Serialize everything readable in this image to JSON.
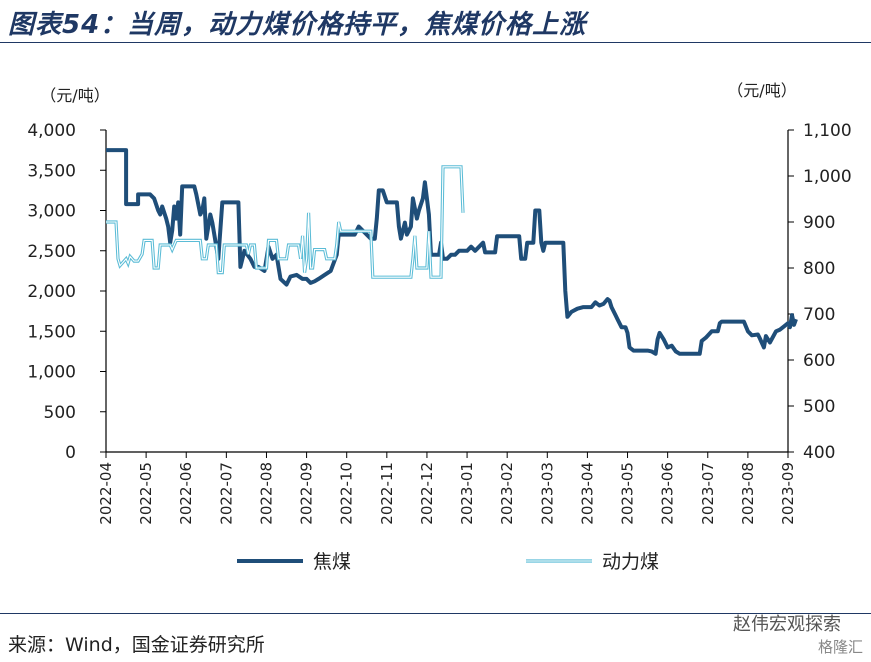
{
  "header": {
    "title": "图表54：当周，动力煤价格持平，焦煤价格上涨"
  },
  "footer": {
    "source": "来源：Wind，国金证券研究所"
  },
  "watermark": {
    "text": "赵伟宏观探索",
    "sub": "格隆汇"
  },
  "chart_data": {
    "type": "line",
    "left_unit": "（元/吨）",
    "right_unit": "（元/吨）",
    "left_axis": {
      "min": 0,
      "max": 4000,
      "step": 500,
      "ticks": [
        "0",
        "500",
        "1,000",
        "1,500",
        "2,000",
        "2,500",
        "3,000",
        "3,500",
        "4,000"
      ]
    },
    "right_axis": {
      "min": 400,
      "max": 1100,
      "step": 100,
      "ticks": [
        "400",
        "500",
        "600",
        "700",
        "800",
        "900",
        "1,000",
        "1,100"
      ]
    },
    "x_range": [
      0,
      17
    ],
    "x_ticks": [
      "2022-04",
      "2022-05",
      "2022-06",
      "2022-07",
      "2022-08",
      "2022-09",
      "2022-10",
      "2022-11",
      "2022-12",
      "2023-01",
      "2023-02",
      "2023-03",
      "2023-04",
      "2023-05",
      "2023-06",
      "2023-07",
      "2023-08",
      "2023-09"
    ],
    "legend_position": "bottom",
    "series": [
      {
        "name": "焦煤",
        "axis": "left",
        "color": "#1f4e79",
        "style": "solid",
        "points": [
          [
            0.0,
            3750
          ],
          [
            0.5,
            3750
          ],
          [
            0.5,
            3080
          ],
          [
            0.8,
            3080
          ],
          [
            0.8,
            3200
          ],
          [
            1.1,
            3200
          ],
          [
            1.2,
            3150
          ],
          [
            1.3,
            3000
          ],
          [
            1.35,
            2950
          ],
          [
            1.4,
            3050
          ],
          [
            1.5,
            2900
          ],
          [
            1.55,
            2800
          ],
          [
            1.6,
            2600
          ],
          [
            1.65,
            2750
          ],
          [
            1.7,
            3050
          ],
          [
            1.75,
            2900
          ],
          [
            1.8,
            3100
          ],
          [
            1.85,
            2700
          ],
          [
            1.9,
            3300
          ],
          [
            2.2,
            3300
          ],
          [
            2.25,
            3200
          ],
          [
            2.35,
            2950
          ],
          [
            2.4,
            3000
          ],
          [
            2.45,
            3150
          ],
          [
            2.5,
            2650
          ],
          [
            2.6,
            2950
          ],
          [
            2.65,
            2850
          ],
          [
            2.7,
            2700
          ],
          [
            2.8,
            2400
          ],
          [
            2.9,
            3100
          ],
          [
            3.3,
            3100
          ],
          [
            3.35,
            2300
          ],
          [
            3.45,
            2500
          ],
          [
            3.6,
            2400
          ],
          [
            3.7,
            2300
          ],
          [
            3.8,
            2300
          ],
          [
            3.95,
            2250
          ],
          [
            4.05,
            2550
          ],
          [
            4.15,
            2400
          ],
          [
            4.25,
            2450
          ],
          [
            4.35,
            2150
          ],
          [
            4.5,
            2080
          ],
          [
            4.6,
            2180
          ],
          [
            4.75,
            2200
          ],
          [
            4.9,
            2150
          ],
          [
            5.0,
            2150
          ],
          [
            5.1,
            2100
          ],
          [
            5.2,
            2120
          ],
          [
            5.3,
            2150
          ],
          [
            5.45,
            2200
          ],
          [
            5.6,
            2250
          ],
          [
            5.75,
            2450
          ],
          [
            5.8,
            2700
          ],
          [
            6.2,
            2700
          ],
          [
            6.3,
            2800
          ],
          [
            6.6,
            2650
          ],
          [
            6.7,
            2650
          ],
          [
            6.75,
            2900
          ],
          [
            6.8,
            3250
          ],
          [
            6.9,
            3250
          ],
          [
            7.0,
            3100
          ],
          [
            7.1,
            3100
          ],
          [
            7.25,
            3100
          ],
          [
            7.3,
            2800
          ],
          [
            7.35,
            2650
          ],
          [
            7.45,
            2850
          ],
          [
            7.5,
            2700
          ],
          [
            7.6,
            2800
          ],
          [
            7.65,
            3150
          ],
          [
            7.75,
            2900
          ],
          [
            7.8,
            3000
          ],
          [
            7.9,
            3150
          ],
          [
            7.95,
            3350
          ],
          [
            8.05,
            2950
          ],
          [
            8.1,
            2450
          ],
          [
            8.3,
            2450
          ],
          [
            8.35,
            2600
          ],
          [
            8.4,
            2400
          ],
          [
            8.5,
            2400
          ],
          [
            8.6,
            2450
          ],
          [
            8.7,
            2450
          ],
          [
            8.8,
            2500
          ],
          [
            9.0,
            2500
          ],
          [
            9.1,
            2550
          ],
          [
            9.2,
            2500
          ],
          [
            9.4,
            2600
          ],
          [
            9.45,
            2480
          ],
          [
            9.7,
            2480
          ],
          [
            9.75,
            2680
          ],
          [
            10.3,
            2680
          ],
          [
            10.35,
            2400
          ],
          [
            10.45,
            2400
          ],
          [
            10.5,
            2600
          ],
          [
            10.65,
            2600
          ],
          [
            10.7,
            3000
          ],
          [
            10.8,
            3000
          ],
          [
            10.85,
            2600
          ],
          [
            10.9,
            2500
          ],
          [
            10.95,
            2600
          ],
          [
            11.4,
            2600
          ],
          [
            11.45,
            2000
          ],
          [
            11.5,
            1680
          ],
          [
            11.6,
            1740
          ],
          [
            11.75,
            1780
          ],
          [
            11.9,
            1800
          ],
          [
            12.0,
            1800
          ],
          [
            12.1,
            1800
          ],
          [
            12.2,
            1860
          ],
          [
            12.3,
            1820
          ],
          [
            12.4,
            1840
          ],
          [
            12.5,
            1900
          ],
          [
            12.55,
            1880
          ],
          [
            12.6,
            1800
          ],
          [
            12.7,
            1700
          ],
          [
            12.75,
            1650
          ],
          [
            12.85,
            1550
          ],
          [
            12.95,
            1550
          ],
          [
            13.0,
            1480
          ],
          [
            13.05,
            1300
          ],
          [
            13.15,
            1260
          ],
          [
            13.5,
            1260
          ],
          [
            13.6,
            1250
          ],
          [
            13.7,
            1220
          ],
          [
            13.75,
            1400
          ],
          [
            13.8,
            1480
          ],
          [
            13.9,
            1400
          ],
          [
            14.0,
            1300
          ],
          [
            14.1,
            1320
          ],
          [
            14.2,
            1250
          ],
          [
            14.3,
            1220
          ],
          [
            14.8,
            1220
          ],
          [
            14.85,
            1380
          ],
          [
            14.95,
            1420
          ],
          [
            15.1,
            1500
          ],
          [
            15.25,
            1500
          ],
          [
            15.3,
            1600
          ],
          [
            15.35,
            1620
          ],
          [
            15.5,
            1620
          ],
          [
            15.9,
            1620
          ],
          [
            16.0,
            1500
          ],
          [
            16.1,
            1450
          ],
          [
            16.25,
            1460
          ],
          [
            16.3,
            1410
          ],
          [
            16.4,
            1300
          ],
          [
            16.45,
            1440
          ],
          [
            16.55,
            1360
          ],
          [
            16.7,
            1500
          ],
          [
            16.8,
            1520
          ],
          [
            16.9,
            1560
          ],
          [
            17.0,
            1600
          ],
          [
            17.05,
            1550
          ],
          [
            17.1,
            1700
          ],
          [
            17.15,
            1580
          ],
          [
            17.2,
            1650
          ]
        ]
      },
      {
        "name": "动力煤",
        "axis": "right",
        "color": "#5bbcd6",
        "style": "double",
        "points": [
          [
            0.0,
            900
          ],
          [
            0.25,
            900
          ],
          [
            0.3,
            820
          ],
          [
            0.35,
            805
          ],
          [
            0.45,
            815
          ],
          [
            0.5,
            820
          ],
          [
            0.55,
            810
          ],
          [
            0.6,
            825
          ],
          [
            0.7,
            815
          ],
          [
            0.8,
            815
          ],
          [
            0.9,
            830
          ],
          [
            0.95,
            860
          ],
          [
            1.15,
            860
          ],
          [
            1.2,
            800
          ],
          [
            1.3,
            800
          ],
          [
            1.35,
            850
          ],
          [
            1.6,
            850
          ],
          [
            1.65,
            840
          ],
          [
            1.7,
            850
          ],
          [
            1.75,
            860
          ],
          [
            2.35,
            860
          ],
          [
            2.4,
            820
          ],
          [
            2.5,
            820
          ],
          [
            2.55,
            850
          ],
          [
            2.75,
            850
          ],
          [
            2.8,
            790
          ],
          [
            2.9,
            790
          ],
          [
            2.95,
            850
          ],
          [
            3.5,
            850
          ],
          [
            3.55,
            830
          ],
          [
            3.6,
            850
          ],
          [
            3.7,
            850
          ],
          [
            3.75,
            800
          ],
          [
            4.0,
            800
          ],
          [
            4.05,
            860
          ],
          [
            4.25,
            860
          ],
          [
            4.3,
            820
          ],
          [
            4.5,
            820
          ],
          [
            4.55,
            850
          ],
          [
            4.8,
            850
          ],
          [
            4.85,
            820
          ],
          [
            4.9,
            870
          ],
          [
            4.95,
            790
          ],
          [
            5.0,
            820
          ],
          [
            5.05,
            920
          ],
          [
            5.1,
            800
          ],
          [
            5.15,
            800
          ],
          [
            5.2,
            840
          ],
          [
            5.45,
            840
          ],
          [
            5.5,
            820
          ],
          [
            5.7,
            820
          ],
          [
            5.75,
            850
          ],
          [
            5.8,
            900
          ],
          [
            5.85,
            880
          ],
          [
            6.6,
            880
          ],
          [
            6.65,
            780
          ],
          [
            7.6,
            780
          ],
          [
            7.65,
            820
          ],
          [
            7.7,
            870
          ],
          [
            7.75,
            800
          ],
          [
            8.0,
            800
          ],
          [
            8.05,
            880
          ],
          [
            8.1,
            780
          ],
          [
            8.35,
            780
          ],
          [
            8.4,
            1020
          ],
          [
            8.85,
            1020
          ],
          [
            8.9,
            920
          ]
        ]
      }
    ]
  }
}
